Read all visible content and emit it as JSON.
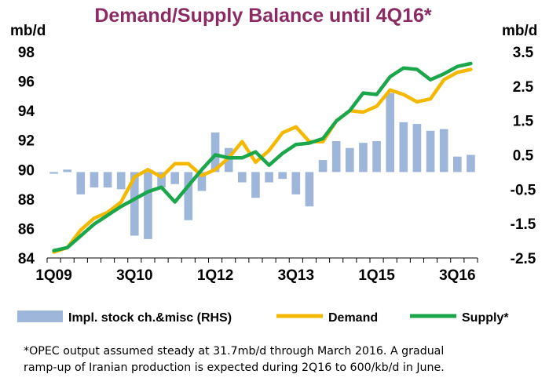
{
  "chart_data": {
    "type": "combo-bar-line",
    "title": "Demand/Supply Balance until 4Q16*",
    "ylabel_left": "mb/d",
    "ylabel_right": "mb/d",
    "ylim_left": [
      84,
      98
    ],
    "ylim_right": [
      -2.5,
      3.5
    ],
    "yticks_left": [
      "84",
      "86",
      "88",
      "90",
      "92",
      "94",
      "96",
      "98"
    ],
    "yticks_right": [
      "-2.5",
      "-1.5",
      "-0.5",
      "0.5",
      "1.5",
      "2.5",
      "3.5"
    ],
    "categories": [
      "1Q09",
      "2Q09",
      "3Q09",
      "4Q09",
      "1Q10",
      "2Q10",
      "3Q10",
      "4Q10",
      "1Q11",
      "2Q11",
      "3Q11",
      "4Q11",
      "1Q12",
      "2Q12",
      "3Q12",
      "4Q12",
      "1Q13",
      "2Q13",
      "3Q13",
      "4Q13",
      "1Q14",
      "2Q14",
      "3Q14",
      "4Q14",
      "1Q15",
      "2Q15",
      "3Q15",
      "4Q15",
      "1Q16",
      "2Q16",
      "3Q16",
      "4Q16"
    ],
    "xtick_labels": [
      "1Q09",
      "3Q10",
      "1Q12",
      "3Q13",
      "1Q15",
      "3Q16"
    ],
    "series": [
      {
        "name": "Impl. stock ch.&misc (RHS)",
        "type": "bar",
        "axis": "right",
        "color": "#9db6da",
        "values": [
          -0.05,
          0.07,
          -0.65,
          -0.45,
          -0.45,
          -0.5,
          -1.85,
          -1.95,
          -0.45,
          -0.35,
          -1.4,
          -0.55,
          1.15,
          0.7,
          -0.3,
          -0.75,
          -0.3,
          -0.2,
          -0.65,
          -1.0,
          0.35,
          0.9,
          0.7,
          0.85,
          0.9,
          2.3,
          1.45,
          1.4,
          1.2,
          1.25,
          0.45,
          0.5
        ]
      },
      {
        "name": "Demand",
        "type": "line",
        "axis": "left",
        "color": "#f5b800",
        "values": [
          84.4,
          84.7,
          85.9,
          86.7,
          87.1,
          87.8,
          89.5,
          90.0,
          89.5,
          90.4,
          90.4,
          89.6,
          90.0,
          90.8,
          91.9,
          90.5,
          91.3,
          92.5,
          92.9,
          91.9,
          91.9,
          93.3,
          94.0,
          93.9,
          94.3,
          95.4,
          95.1,
          94.6,
          94.8,
          96.1,
          96.6,
          96.8
        ]
      },
      {
        "name": "Supply*",
        "type": "line",
        "axis": "left",
        "color": "#1aa64a",
        "values": [
          84.5,
          84.7,
          85.5,
          86.3,
          86.9,
          87.5,
          88.0,
          88.5,
          88.8,
          87.8,
          88.9,
          90.0,
          91.0,
          90.8,
          90.8,
          91.2,
          90.3,
          91.1,
          91.7,
          91.8,
          92.1,
          93.3,
          94.0,
          95.2,
          95.1,
          96.3,
          96.9,
          96.8,
          96.1,
          96.5,
          97.0,
          97.2
        ]
      }
    ]
  },
  "footnote": {
    "line1": "*OPEC output assumed steady at 31.7mb/d  through  March 2016. A gradual",
    "line2": "ramp-up of Iranian production is expected during 2Q16 to 600/kb/d in June."
  }
}
